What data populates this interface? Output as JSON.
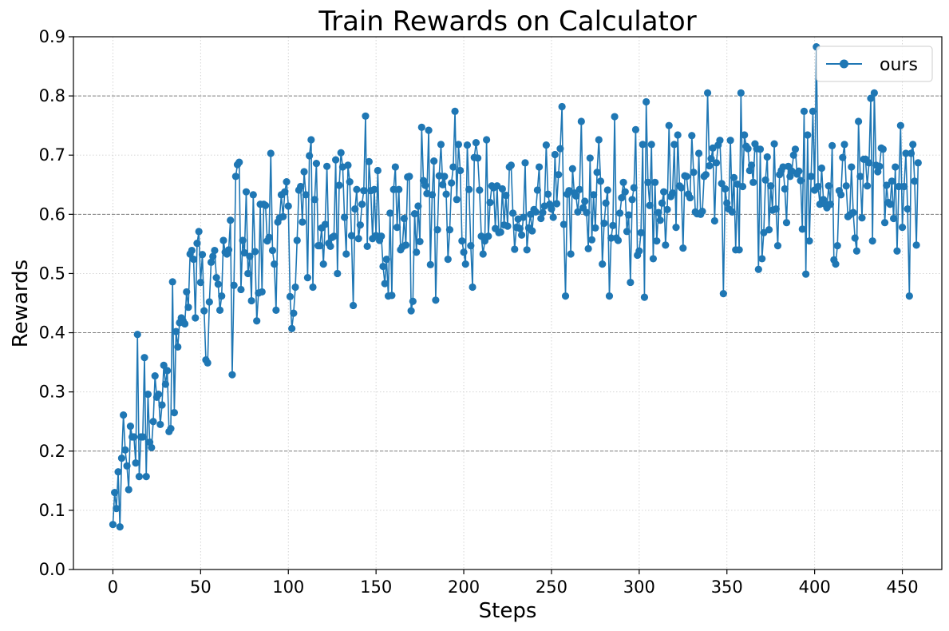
{
  "chart_data": {
    "type": "line",
    "title": "Train Rewards on Calculator",
    "xlabel": "Steps",
    "ylabel": "Rewards",
    "xlim": [
      -22.5,
      472.5
    ],
    "ylim": [
      0.0,
      0.9
    ],
    "xticks": [
      "0",
      "50",
      "100",
      "150",
      "200",
      "250",
      "300",
      "350",
      "400",
      "450"
    ],
    "yticks": [
      "0.0",
      "0.1",
      "0.2",
      "0.3",
      "0.4",
      "0.5",
      "0.6",
      "0.7",
      "0.8",
      "0.9"
    ],
    "grid": true,
    "legend_position": "top-right",
    "series": [
      {
        "name": "ours",
        "color": "#1f77b4",
        "marker": "circle",
        "x_start": 0,
        "x_step": 1,
        "values": [
          0.076,
          0.13,
          0.103,
          0.165,
          0.072,
          0.188,
          0.261,
          0.202,
          0.175,
          0.135,
          0.242,
          0.224,
          0.224,
          0.18,
          0.397,
          0.157,
          0.224,
          0.224,
          0.358,
          0.157,
          0.296,
          0.215,
          0.206,
          0.25,
          0.327,
          0.291,
          0.296,
          0.245,
          0.278,
          0.345,
          0.313,
          0.336,
          0.233,
          0.238,
          0.486,
          0.265,
          0.402,
          0.376,
          0.417,
          0.425,
          0.42,
          0.415,
          0.469,
          0.443,
          0.533,
          0.539,
          0.524,
          0.425,
          0.551,
          0.571,
          0.485,
          0.532,
          0.437,
          0.354,
          0.349,
          0.452,
          0.519,
          0.529,
          0.539,
          0.493,
          0.482,
          0.438,
          0.462,
          0.556,
          0.536,
          0.533,
          0.54,
          0.59,
          0.329,
          0.48,
          0.664,
          0.684,
          0.688,
          0.473,
          0.556,
          0.535,
          0.638,
          0.5,
          0.529,
          0.454,
          0.633,
          0.537,
          0.42,
          0.467,
          0.617,
          0.469,
          0.617,
          0.615,
          0.555,
          0.561,
          0.703,
          0.539,
          0.516,
          0.438,
          0.587,
          0.594,
          0.633,
          0.596,
          0.638,
          0.655,
          0.614,
          0.461,
          0.407,
          0.433,
          0.477,
          0.556,
          0.641,
          0.647,
          0.587,
          0.672,
          0.633,
          0.493,
          0.699,
          0.726,
          0.477,
          0.625,
          0.686,
          0.547,
          0.547,
          0.577,
          0.516,
          0.583,
          0.681,
          0.551,
          0.546,
          0.561,
          0.563,
          0.692,
          0.5,
          0.649,
          0.704,
          0.68,
          0.595,
          0.533,
          0.683,
          0.655,
          0.564,
          0.446,
          0.609,
          0.642,
          0.559,
          0.582,
          0.617,
          0.64,
          0.766,
          0.546,
          0.689,
          0.64,
          0.559,
          0.642,
          0.564,
          0.674,
          0.556,
          0.563,
          0.512,
          0.483,
          0.524,
          0.462,
          0.602,
          0.463,
          0.642,
          0.68,
          0.578,
          0.642,
          0.54,
          0.545,
          0.593,
          0.548,
          0.663,
          0.664,
          0.437,
          0.453,
          0.601,
          0.536,
          0.614,
          0.554,
          0.747,
          0.657,
          0.649,
          0.635,
          0.742,
          0.515,
          0.633,
          0.69,
          0.455,
          0.574,
          0.665,
          0.718,
          0.65,
          0.664,
          0.634,
          0.524,
          0.574,
          0.653,
          0.68,
          0.774,
          0.625,
          0.718,
          0.674,
          0.555,
          0.536,
          0.516,
          0.717,
          0.642,
          0.547,
          0.477,
          0.696,
          0.721,
          0.695,
          0.641,
          0.563,
          0.533,
          0.555,
          0.726,
          0.563,
          0.62,
          0.648,
          0.645,
          0.576,
          0.648,
          0.569,
          0.57,
          0.643,
          0.582,
          0.632,
          0.58,
          0.68,
          0.683,
          0.602,
          0.541,
          0.578,
          0.592,
          0.576,
          0.565,
          0.595,
          0.687,
          0.54,
          0.577,
          0.6,
          0.572,
          0.608,
          0.604,
          0.641,
          0.68,
          0.593,
          0.603,
          0.614,
          0.717,
          0.634,
          0.617,
          0.609,
          0.595,
          0.701,
          0.618,
          0.667,
          0.711,
          0.782,
          0.583,
          0.462,
          0.634,
          0.64,
          0.533,
          0.677,
          0.636,
          0.631,
          0.604,
          0.642,
          0.757,
          0.611,
          0.622,
          0.603,
          0.542,
          0.695,
          0.557,
          0.633,
          0.577,
          0.671,
          0.726,
          0.656,
          0.516,
          0.585,
          0.619,
          0.641,
          0.462,
          0.56,
          0.581,
          0.765,
          0.56,
          0.556,
          0.602,
          0.628,
          0.654,
          0.638,
          0.571,
          0.599,
          0.485,
          0.625,
          0.645,
          0.743,
          0.531,
          0.538,
          0.569,
          0.718,
          0.46,
          0.79,
          0.654,
          0.615,
          0.718,
          0.525,
          0.654,
          0.555,
          0.603,
          0.59,
          0.619,
          0.638,
          0.548,
          0.608,
          0.75,
          0.63,
          0.636,
          0.718,
          0.578,
          0.734,
          0.648,
          0.645,
          0.543,
          0.665,
          0.664,
          0.634,
          0.628,
          0.733,
          0.671,
          0.604,
          0.601,
          0.703,
          0.6,
          0.605,
          0.664,
          0.667,
          0.805,
          0.682,
          0.694,
          0.712,
          0.589,
          0.687,
          0.717,
          0.725,
          0.652,
          0.466,
          0.643,
          0.619,
          0.609,
          0.725,
          0.604,
          0.662,
          0.54,
          0.651,
          0.54,
          0.805,
          0.647,
          0.734,
          0.715,
          0.711,
          0.674,
          0.683,
          0.654,
          0.719,
          0.711,
          0.507,
          0.71,
          0.525,
          0.569,
          0.658,
          0.697,
          0.574,
          0.648,
          0.607,
          0.719,
          0.609,
          0.547,
          0.667,
          0.674,
          0.68,
          0.643,
          0.586,
          0.681,
          0.664,
          0.673,
          0.7,
          0.71,
          0.668,
          0.673,
          0.657,
          0.575,
          0.774,
          0.499,
          0.734,
          0.555,
          0.664,
          0.774,
          0.641,
          0.883,
          0.647,
          0.617,
          0.678,
          0.625,
          0.617,
          0.611,
          0.648,
          0.617,
          0.716,
          0.523,
          0.516,
          0.547,
          0.64,
          0.633,
          0.696,
          0.718,
          0.648,
          0.596,
          0.599,
          0.68,
          0.603,
          0.56,
          0.538,
          0.757,
          0.664,
          0.594,
          0.693,
          0.693,
          0.648,
          0.687,
          0.796,
          0.555,
          0.805,
          0.683,
          0.672,
          0.681,
          0.712,
          0.71,
          0.586,
          0.649,
          0.62,
          0.617,
          0.656,
          0.593,
          0.68,
          0.538,
          0.647,
          0.75,
          0.578,
          0.647,
          0.703,
          0.609,
          0.462,
          0.703,
          0.718,
          0.656,
          0.548,
          0.687
        ]
      }
    ]
  }
}
